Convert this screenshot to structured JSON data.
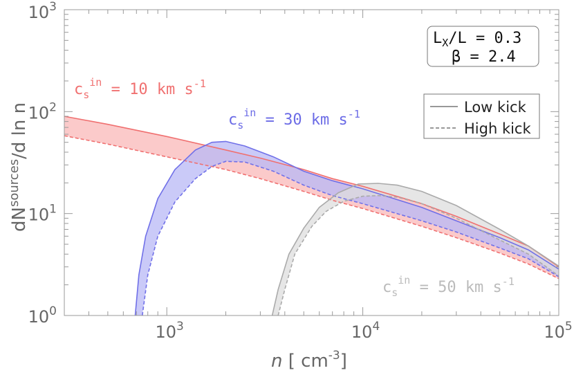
{
  "chart_data": {
    "type": "area",
    "x_scale": "log",
    "y_scale": "log",
    "xlim": [
      300,
      100000
    ],
    "ylim": [
      1,
      1000
    ],
    "x_ticks": [
      {
        "value": 1000,
        "base": "10",
        "exp": "3"
      },
      {
        "value": 10000,
        "base": "10",
        "exp": "4"
      },
      {
        "value": 100000,
        "base": "10",
        "exp": "5"
      }
    ],
    "y_ticks": [
      {
        "value": 1,
        "base": "10",
        "exp": "0"
      },
      {
        "value": 10,
        "base": "10",
        "exp": "1"
      },
      {
        "value": 100,
        "base": "10",
        "exp": "2"
      },
      {
        "value": 1000,
        "base": "10",
        "exp": "3"
      }
    ],
    "xlabel": {
      "var": "n",
      "unit_open": " [ cm",
      "unit_exp": "-3",
      "unit_close": "]"
    },
    "ylabel": {
      "pre": "dN",
      "sup": "sources",
      "post": "/d ln n"
    },
    "params": {
      "line1": "L",
      "line1_sub": "X",
      "line1_rest": "/L = 0.3",
      "line2": "β = 2.4"
    },
    "legend": {
      "low": "Low kick",
      "high": "High kick",
      "placement": "top-right"
    },
    "series": [
      {
        "label_pre": "c",
        "label_sub": "s",
        "label_sup": "in",
        "label_post": " = 10 km s",
        "label_exp": "-1",
        "color": "#f07070",
        "fill": "#f9b8b8",
        "low_kick": [
          [
            300,
            90
          ],
          [
            500,
            75
          ],
          [
            1000,
            57
          ],
          [
            2000,
            42
          ],
          [
            3000,
            35
          ],
          [
            5000,
            27
          ],
          [
            7000,
            22
          ],
          [
            10000,
            18.5
          ],
          [
            20000,
            12.5
          ],
          [
            30000,
            9.4
          ],
          [
            50000,
            6.3
          ],
          [
            70000,
            4.8
          ],
          [
            100000,
            3.0
          ]
        ],
        "high_kick": [
          [
            300,
            58
          ],
          [
            500,
            48
          ],
          [
            1000,
            36
          ],
          [
            2000,
            27
          ],
          [
            3000,
            22
          ],
          [
            5000,
            16.5
          ],
          [
            7000,
            13.5
          ],
          [
            10000,
            11.2
          ],
          [
            20000,
            7.5
          ],
          [
            30000,
            5.8
          ],
          [
            50000,
            4.1
          ],
          [
            70000,
            3.2
          ],
          [
            100000,
            2.3
          ]
        ]
      },
      {
        "label_pre": "c",
        "label_sub": "s",
        "label_sup": "in",
        "label_post": " = 30 km s",
        "label_exp": "-1",
        "color": "#7070e8",
        "fill": "#b8b8f6",
        "low_kick": [
          [
            690,
            1
          ],
          [
            720,
            2.5
          ],
          [
            780,
            6
          ],
          [
            900,
            14
          ],
          [
            1100,
            27
          ],
          [
            1400,
            42
          ],
          [
            1700,
            50
          ],
          [
            2000,
            51
          ],
          [
            2500,
            46
          ],
          [
            3500,
            36
          ],
          [
            5000,
            26
          ],
          [
            7000,
            21
          ],
          [
            10000,
            17.5
          ],
          [
            20000,
            11.5
          ],
          [
            30000,
            8.5
          ],
          [
            50000,
            5.8
          ],
          [
            70000,
            4.4
          ],
          [
            100000,
            2.85
          ]
        ],
        "high_kick": [
          [
            750,
            1
          ],
          [
            800,
            2.5
          ],
          [
            900,
            6
          ],
          [
            1100,
            13
          ],
          [
            1400,
            22
          ],
          [
            1700,
            29
          ],
          [
            2000,
            32.5
          ],
          [
            2500,
            32
          ],
          [
            3500,
            26
          ],
          [
            5000,
            19
          ],
          [
            7000,
            15
          ],
          [
            10000,
            12.5
          ],
          [
            20000,
            8.5
          ],
          [
            30000,
            6.6
          ],
          [
            50000,
            4.6
          ],
          [
            70000,
            3.6
          ],
          [
            100000,
            2.4
          ]
        ]
      },
      {
        "label_pre": "c",
        "label_sub": "s",
        "label_sup": "in",
        "label_post": " = 50 km s",
        "label_exp": "-1",
        "color": "#aaaaaa",
        "fill": "#dddddd",
        "low_kick": [
          [
            3450,
            1
          ],
          [
            3700,
            1.8
          ],
          [
            4200,
            4
          ],
          [
            5000,
            7.2
          ],
          [
            6000,
            11.5
          ],
          [
            7500,
            16
          ],
          [
            9500,
            19.5
          ],
          [
            12000,
            19.8
          ],
          [
            15000,
            19
          ],
          [
            20000,
            16.5
          ],
          [
            30000,
            12
          ],
          [
            50000,
            7
          ],
          [
            70000,
            4.8
          ],
          [
            100000,
            3.05
          ]
        ],
        "high_kick": [
          [
            3700,
            1
          ],
          [
            4000,
            1.8
          ],
          [
            4500,
            4
          ],
          [
            5500,
            7.5
          ],
          [
            6500,
            10.5
          ],
          [
            8000,
            13.2
          ],
          [
            10000,
            14.8
          ],
          [
            12000,
            15
          ],
          [
            15000,
            14.5
          ],
          [
            20000,
            12.5
          ],
          [
            30000,
            9
          ],
          [
            50000,
            5.5
          ],
          [
            70000,
            4
          ],
          [
            100000,
            2.45
          ]
        ]
      }
    ]
  }
}
